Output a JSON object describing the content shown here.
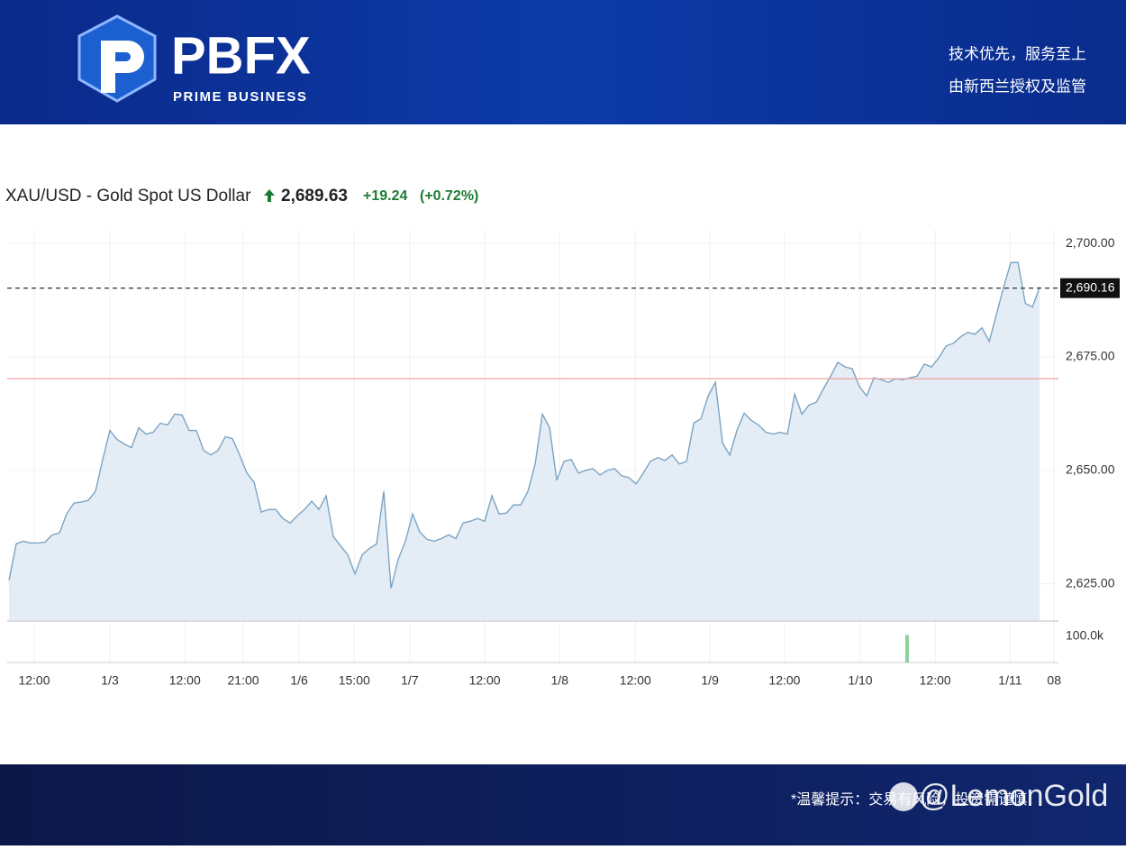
{
  "header": {
    "brand": "PBFX",
    "tagline": "PRIME BUSINESS",
    "slogan_1": "技术优先，服务至上",
    "slogan_2": "由新西兰授权及监管"
  },
  "chart_data": {
    "type": "line",
    "title": "XAU/USD - Gold Spot US Dollar",
    "last_price": "2,689.63",
    "change": "+19.24",
    "change_pct": "(+0.72%)",
    "color": "#7ba4c4",
    "fill": "#e4edf5",
    "x": [
      0,
      1,
      2,
      3,
      4,
      5,
      6,
      7,
      8,
      9,
      10,
      11,
      12,
      13,
      14,
      15,
      16,
      17,
      18,
      19,
      20,
      21,
      22,
      23,
      24,
      25,
      26,
      27,
      28,
      29,
      30,
      31,
      32,
      33,
      34,
      35,
      36,
      37,
      38,
      39,
      40,
      41,
      42,
      43,
      44,
      45,
      46,
      47,
      48,
      49,
      50,
      51,
      52,
      53,
      54,
      55,
      56,
      57,
      58,
      59,
      60,
      61,
      62,
      63,
      64,
      65,
      66,
      67,
      68,
      69,
      70,
      71,
      72,
      73,
      74,
      75,
      76,
      77,
      78,
      79,
      80,
      81,
      82,
      83,
      84,
      85,
      86,
      87,
      88,
      89,
      90,
      91,
      92,
      93,
      94,
      95,
      96,
      97,
      98,
      99,
      100,
      101,
      102,
      103,
      104,
      105,
      106,
      107,
      108,
      109,
      110,
      111,
      112,
      113,
      114,
      115,
      116,
      117,
      118,
      119,
      120,
      121,
      122,
      123,
      124,
      125,
      126,
      127,
      128,
      129,
      130,
      131,
      132,
      133,
      134,
      135,
      136,
      137,
      138,
      139,
      140,
      141,
      142,
      143
    ],
    "values": [
      2625.8,
      2633.8,
      2634.4,
      2634,
      2634,
      2634.2,
      2635.8,
      2636.2,
      2640.4,
      2642.8,
      2643,
      2643.4,
      2645.4,
      2652.4,
      2658.8,
      2656.8,
      2655.8,
      2655,
      2659.4,
      2658,
      2658.4,
      2660.4,
      2660,
      2662.4,
      2662.2,
      2658.8,
      2658.8,
      2654.4,
      2653.4,
      2654.4,
      2657.4,
      2657,
      2653.4,
      2649.4,
      2647.4,
      2640.8,
      2641.4,
      2641.4,
      2639.4,
      2638.4,
      2640,
      2641.4,
      2643.2,
      2641.4,
      2644.4,
      2635.4,
      2633.4,
      2631.4,
      2627.2,
      2631.4,
      2632.8,
      2633.8,
      2645.4,
      2624,
      2630.4,
      2634.4,
      2640.4,
      2636.4,
      2634.8,
      2634.4,
      2635,
      2635.8,
      2635,
      2638.4,
      2638.8,
      2639.4,
      2638.8,
      2644.4,
      2640.4,
      2640.6,
      2642.4,
      2642.4,
      2645.4,
      2651.4,
      2662.4,
      2659.4,
      2647.8,
      2652,
      2652.4,
      2649.4,
      2650,
      2650.4,
      2649,
      2650,
      2650.4,
      2648.8,
      2648.4,
      2647,
      2649.4,
      2652,
      2652.8,
      2652.2,
      2653.4,
      2651.4,
      2652,
      2660.4,
      2661.4,
      2666.4,
      2669.4,
      2656,
      2653.4,
      2658.8,
      2662.6,
      2661,
      2660,
      2658.4,
      2658,
      2658.4,
      2658,
      2666.8,
      2662.4,
      2664.4,
      2665,
      2668,
      2670.8,
      2673.8,
      2672.8,
      2672.4,
      2668.4,
      2666.4,
      2670.4,
      2670,
      2669.4,
      2670.2,
      2670,
      2670.4,
      2670.8,
      2673.4,
      2672.8,
      2674.8,
      2677.4,
      2678,
      2679.4,
      2680.4,
      2680,
      2681.4,
      2678.4,
      2684.4,
      2690.4,
      2695.8,
      2695.8,
      2686.8,
      2686,
      2690.4
    ],
    "xlim": [
      -0.25,
      145.6
    ],
    "ylim": [
      2617,
      2703
    ],
    "xticks": [
      {
        "value": 3.5,
        "label": "12:00"
      },
      {
        "value": 14,
        "label": "1/3"
      },
      {
        "value": 24.4,
        "label": "12:00"
      },
      {
        "value": 32.5,
        "label": "21:00"
      },
      {
        "value": 40.25,
        "label": "1/6"
      },
      {
        "value": 47.9,
        "label": "15:00"
      },
      {
        "value": 55.6,
        "label": "1/7"
      },
      {
        "value": 66,
        "label": "12:00"
      },
      {
        "value": 76.4,
        "label": "1/8"
      },
      {
        "value": 86.9,
        "label": "12:00"
      },
      {
        "value": 97.25,
        "label": "1/9"
      },
      {
        "value": 107.6,
        "label": "12:00"
      },
      {
        "value": 118.1,
        "label": "1/10"
      },
      {
        "value": 128.5,
        "label": "12:00"
      },
      {
        "value": 138.9,
        "label": "1/11"
      },
      {
        "value": 145,
        "label": "08"
      }
    ],
    "yticks": [
      {
        "value": 2625,
        "label": "2,625.00"
      },
      {
        "value": 2650,
        "label": "2,650.00"
      },
      {
        "value": 2675,
        "label": "2,675.00"
      },
      {
        "value": 2700,
        "label": "2,700.00"
      }
    ],
    "grid": true,
    "prev_close": 2670.2,
    "prev_close_color": "#f0a0a0",
    "last_marker": {
      "value": 2690.16,
      "label": "2,690.16"
    },
    "volume": {
      "x": [
        124.6
      ],
      "values": [
        105000
      ],
      "color": "#8fd19e",
      "ylim": [
        0,
        158600
      ],
      "yticks": [
        {
          "value": 100000,
          "label": "100.0k"
        }
      ]
    }
  },
  "footer": {
    "notice": "*温馨提示：交易有风险，投资需谨慎",
    "watermark": "@LemonGold"
  }
}
